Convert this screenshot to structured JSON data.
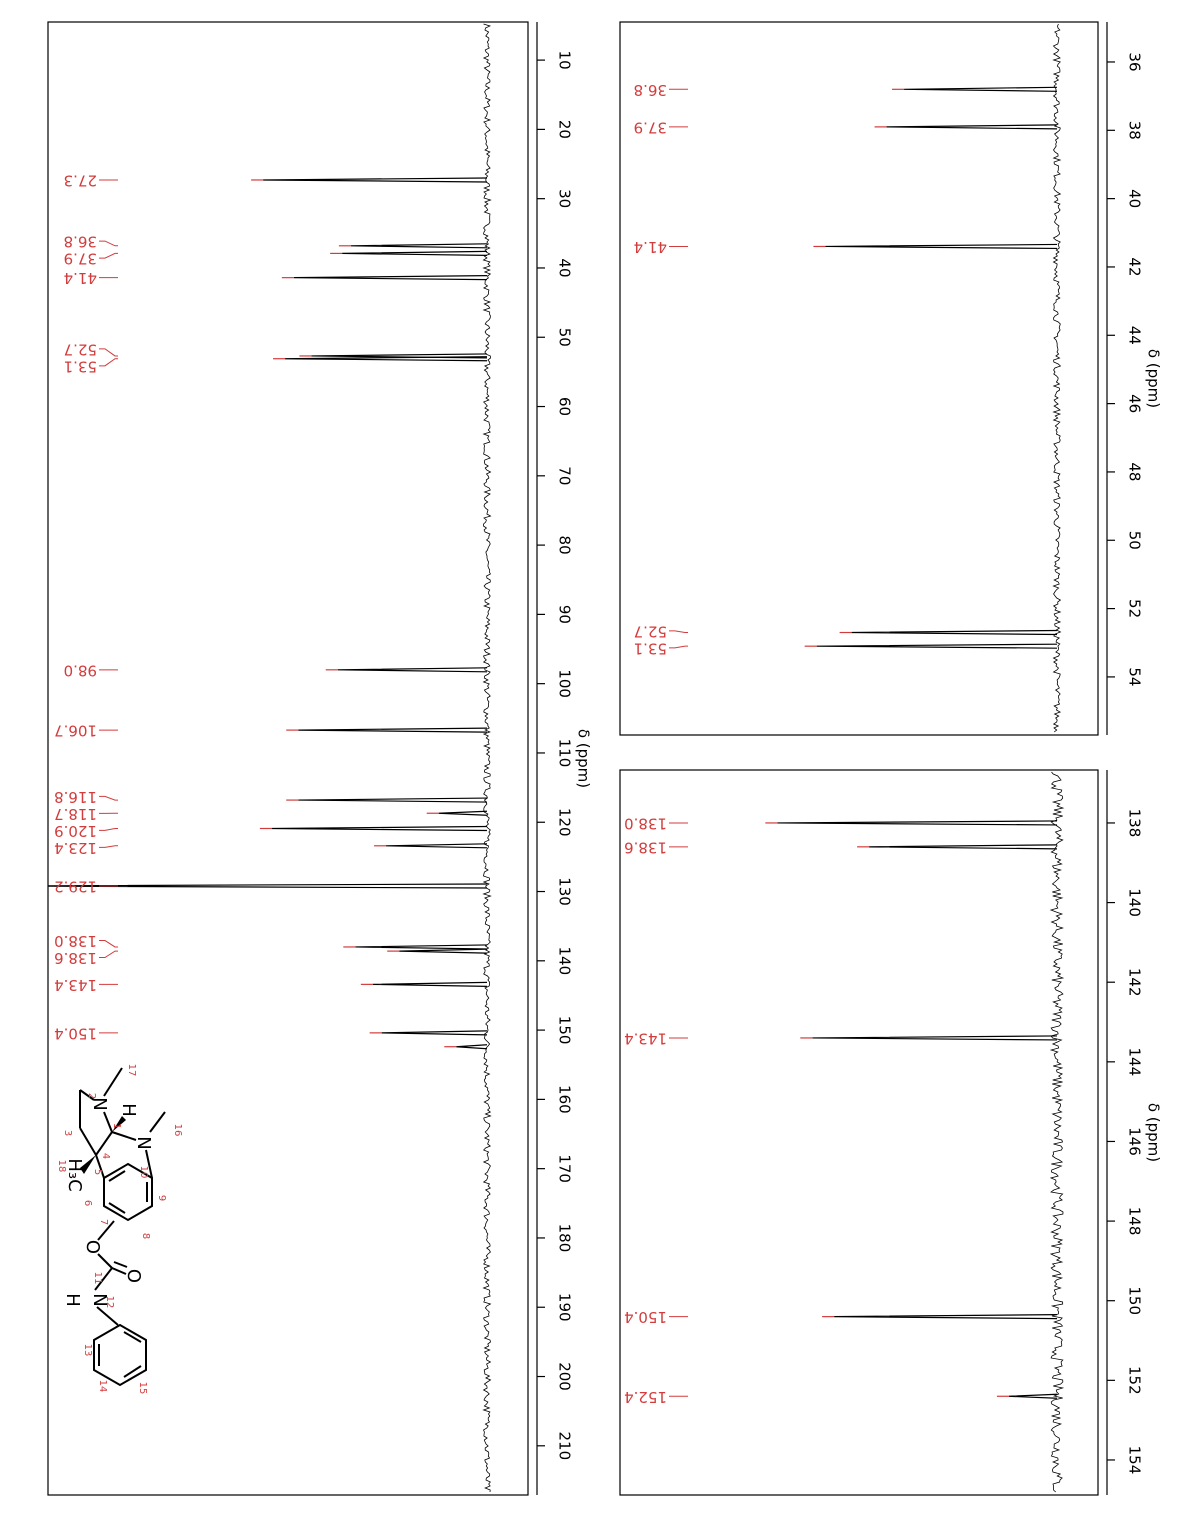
{
  "chart_data": [
    {
      "type": "spectrum",
      "xlabel": "δ (ppm)",
      "xlim": [
        4.5,
        217.1
      ],
      "ylim": [
        0,
        100
      ],
      "xticks": [
        10,
        20,
        30,
        40,
        50,
        60,
        70,
        80,
        90,
        100,
        110,
        120,
        130,
        140,
        150,
        160,
        170,
        180,
        190,
        200,
        210
      ],
      "color": "#000000",
      "label_color": "#d23c3c",
      "x": [
        27.3,
        36.8,
        37.9,
        41.4,
        52.7,
        53.1,
        98.0,
        106.7,
        116.8,
        118.7,
        120.9,
        123.4,
        129.2,
        138.0,
        138.6,
        143.4,
        150.4,
        152.4
      ],
      "values": [
        51,
        31,
        33,
        44,
        40,
        46,
        34,
        43,
        43,
        11,
        49,
        23,
        110,
        30,
        20,
        26,
        24,
        7
      ],
      "peak_labels": [
        "27.3",
        "36.8",
        "37.9",
        "41.4",
        "52.7",
        "53.1",
        "98.0",
        "106.7",
        "116.8",
        "118.7",
        "120.9",
        "123.4",
        "129.2",
        "138.0",
        "138.6",
        "143.4",
        "150.4",
        null
      ]
    },
    {
      "type": "spectrum",
      "xlabel": "δ (ppm)",
      "xlim": [
        34.83,
        55.7
      ],
      "ylim": [
        0,
        100
      ],
      "xticks": [
        36,
        38,
        40,
        42,
        44,
        46,
        48,
        50,
        52,
        54
      ],
      "color": "#000000",
      "label_color": "#d23c3c",
      "x": [
        36.8,
        37.9,
        41.4,
        52.7,
        53.1
      ],
      "values": [
        35,
        39,
        53,
        47,
        55
      ],
      "peak_labels": [
        "36.8",
        "37.9",
        "41.4",
        "52.7",
        "53.1"
      ]
    },
    {
      "type": "spectrum",
      "xlabel": "δ (ppm)",
      "xlim": [
        136.67,
        154.88
      ],
      "ylim": [
        0,
        100
      ],
      "xticks": [
        138,
        140,
        142,
        144,
        146,
        148,
        150,
        152,
        154
      ],
      "color": "#000000",
      "label_color": "#d23c3c",
      "x": [
        138.0,
        138.6,
        143.4,
        150.4,
        152.4
      ],
      "values": [
        64,
        43,
        56,
        51,
        11
      ],
      "peak_labels": [
        "138.0",
        "138.6",
        "143.4",
        "150.4",
        "152.4"
      ]
    }
  ],
  "structure": {
    "atoms": [
      "H₃C",
      "N",
      "N",
      "H",
      "O",
      "O",
      "N",
      "H"
    ],
    "numbers": [
      "1",
      "2",
      "3",
      "4",
      "5",
      "6",
      "7",
      "8",
      "9",
      "10",
      "11",
      "12",
      "13",
      "14",
      "15",
      "16",
      "17",
      "18"
    ]
  }
}
